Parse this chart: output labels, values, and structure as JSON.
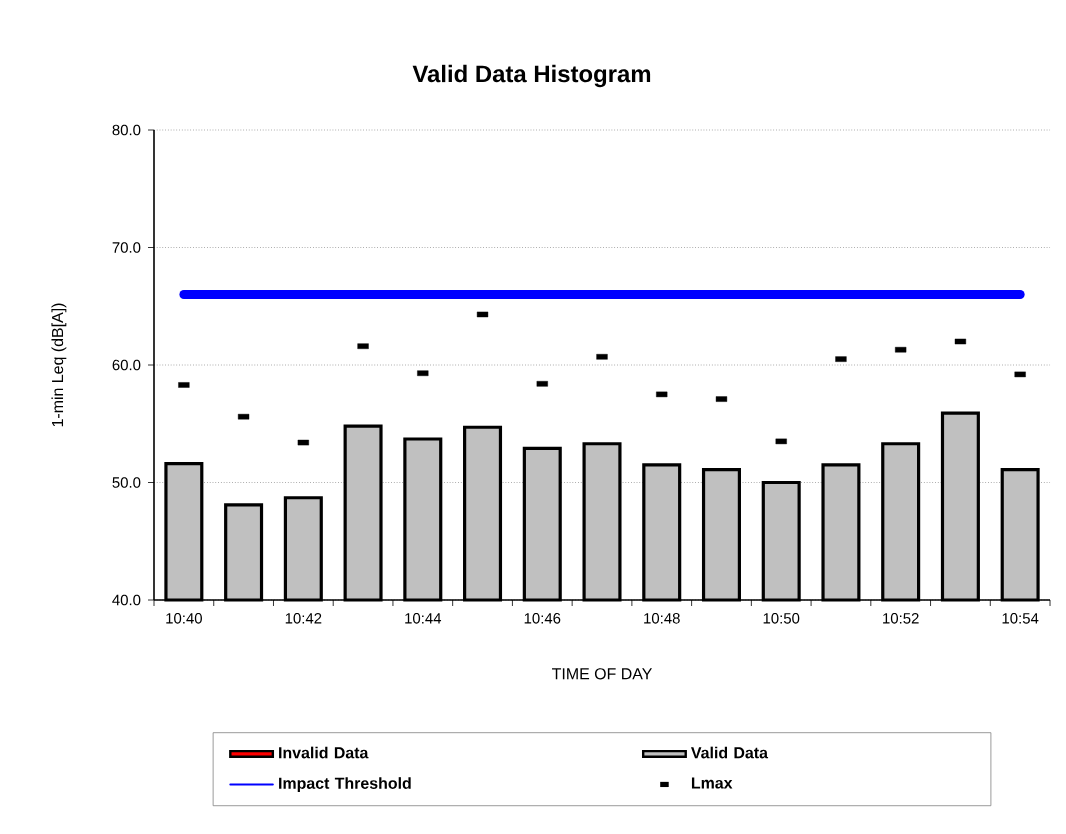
{
  "chart_data": {
    "type": "bar",
    "title": "Valid Data Histogram",
    "xlabel": "TIME OF DAY",
    "ylabel": "1-min Leq (dB[A])",
    "categories": [
      "10:40",
      null,
      "10:42",
      null,
      "10:44",
      null,
      "10:46",
      null,
      "10:48",
      null,
      "10:50",
      null,
      "10:52",
      null,
      "10:54"
    ],
    "series": [
      {
        "name": "Invalid Data",
        "color": "#ff0000",
        "values": [
          null,
          null,
          null,
          null,
          null,
          null,
          null,
          null,
          null,
          null,
          null,
          null,
          null,
          null,
          null
        ]
      },
      {
        "name": "Valid Data",
        "color": "#c0c0c0",
        "values": [
          51.6,
          48.1,
          48.7,
          54.8,
          53.7,
          54.7,
          52.9,
          53.3,
          51.5,
          51.1,
          50.0,
          51.5,
          53.3,
          55.9,
          51.1
        ]
      },
      {
        "name": "Impact Threshold",
        "type": "line",
        "color": "#0000ff",
        "values": [
          66.0,
          66.0,
          66.0,
          66.0,
          66.0,
          66.0,
          66.0,
          66.0,
          66.0,
          66.0,
          66.0,
          66.0,
          66.0,
          66.0,
          66.0
        ]
      },
      {
        "name": "Lmax",
        "type": "scatter",
        "color": "#000000",
        "values": [
          58.3,
          55.6,
          53.4,
          61.6,
          59.3,
          64.3,
          58.4,
          60.7,
          57.5,
          57.1,
          53.5,
          60.5,
          61.3,
          62.0,
          59.2
        ]
      }
    ],
    "ylim": [
      40,
      80
    ],
    "yticks": [
      {
        "value": 40,
        "label": "40.0"
      },
      {
        "value": 50,
        "label": "50.0"
      },
      {
        "value": 60,
        "label": "60.0"
      },
      {
        "value": 70,
        "label": "70.0"
      },
      {
        "value": 80,
        "label": "80.0"
      }
    ],
    "grid": "y",
    "legend": "bottom"
  }
}
